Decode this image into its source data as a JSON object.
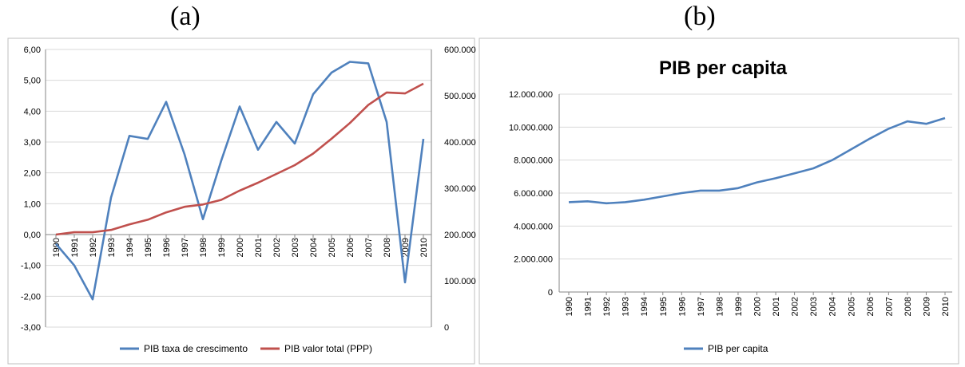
{
  "panels": {
    "a": "(a)",
    "b": "(b)"
  },
  "chart_data": [
    {
      "type": "line",
      "categories": [
        "1990",
        "1991",
        "1992",
        "1993",
        "1994",
        "1995",
        "1996",
        "1997",
        "1998",
        "1999",
        "2000",
        "2001",
        "2002",
        "2003",
        "2004",
        "2005",
        "2006",
        "2007",
        "2008",
        "2009",
        "2010"
      ],
      "series": [
        {
          "name": "PIB taxa de crescimento",
          "axis": "left",
          "color": "#4f81bd",
          "values": [
            -0.3,
            -1.0,
            -2.1,
            1.2,
            3.2,
            3.1,
            4.3,
            2.6,
            0.5,
            2.4,
            4.15,
            2.75,
            3.65,
            2.95,
            4.55,
            5.25,
            5.6,
            5.55,
            3.65,
            -1.55,
            3.1
          ]
        },
        {
          "name": "PIB valor total (PPP)",
          "axis": "right",
          "color": "#c0504d",
          "values": [
            200000,
            205000,
            205000,
            210000,
            222000,
            232000,
            248000,
            260000,
            265000,
            275000,
            295000,
            312000,
            331000,
            350000,
            375000,
            407000,
            441000,
            480000,
            507000,
            505000,
            526000
          ]
        }
      ],
      "yaxis_left": {
        "min": -3,
        "max": 6,
        "ticks": [
          "-3,00",
          "-2,00",
          "-1,00",
          "0,00",
          "1,00",
          "2,00",
          "3,00",
          "4,00",
          "5,00",
          "6,00"
        ]
      },
      "yaxis_right": {
        "min": 0,
        "max": 600000,
        "ticks": [
          "0",
          "100.000",
          "200.000",
          "300.000",
          "400.000",
          "500.000",
          "600.000"
        ]
      },
      "grid": true,
      "legend_position": "bottom"
    },
    {
      "type": "line",
      "title": "PIB per capita",
      "categories": [
        "1990",
        "1991",
        "1992",
        "1993",
        "1994",
        "1995",
        "1996",
        "1997",
        "1998",
        "1999",
        "2000",
        "2001",
        "2002",
        "2003",
        "2004",
        "2005",
        "2006",
        "2007",
        "2008",
        "2009",
        "2010"
      ],
      "series": [
        {
          "name": "PIB per capita",
          "color": "#4f81bd",
          "values": [
            5450000,
            5500000,
            5380000,
            5450000,
            5600000,
            5800000,
            6000000,
            6150000,
            6150000,
            6300000,
            6650000,
            6900000,
            7200000,
            7500000,
            8000000,
            8650000,
            9300000,
            9900000,
            10350000,
            10200000,
            10550000
          ]
        }
      ],
      "yaxis": {
        "min": 0,
        "max": 12000000,
        "ticks": [
          "0",
          "2.000.000",
          "4.000.000",
          "6.000.000",
          "8.000.000",
          "10.000.000",
          "12.000.000"
        ]
      },
      "grid": true,
      "legend_position": "bottom"
    }
  ]
}
